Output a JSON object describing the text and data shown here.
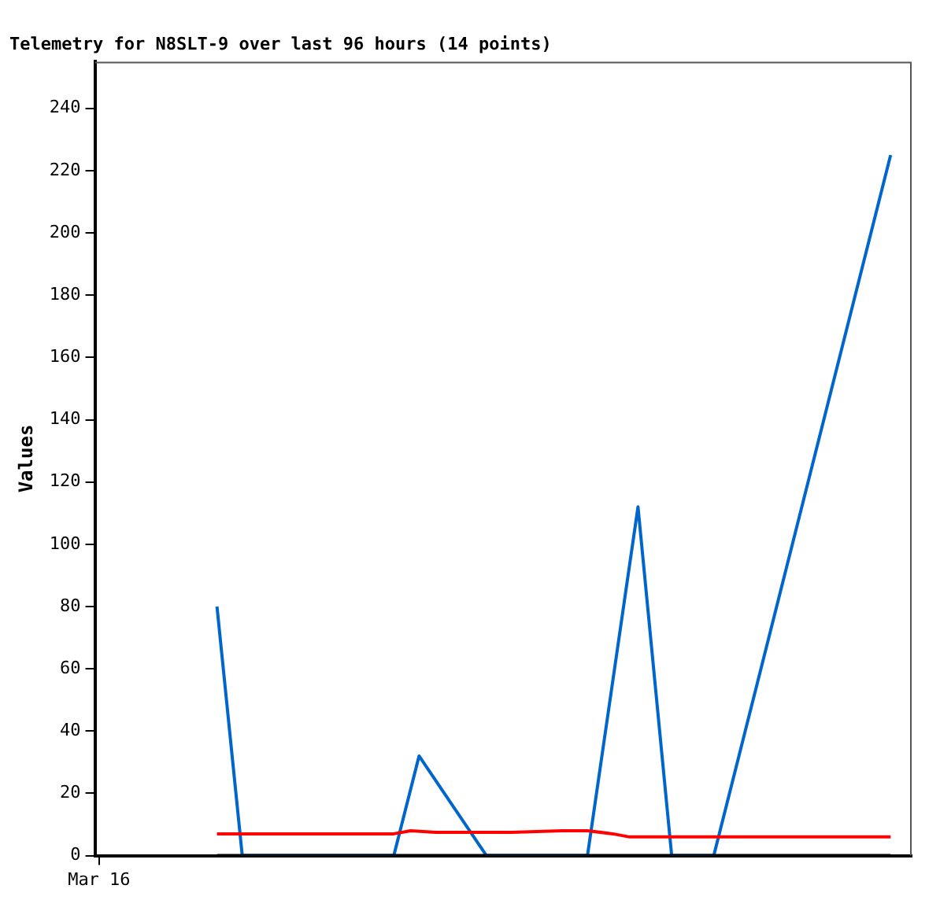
{
  "chart_data": {
    "type": "line",
    "title": "Telemetry for N8SLT-9 over last 96 hours (14 points)",
    "ylabel": "Values",
    "categories": [
      "Mar 16",
      null,
      null,
      null,
      null,
      null,
      null,
      null,
      null,
      null,
      null,
      null,
      null,
      null,
      null,
      null,
      null,
      null,
      null,
      null,
      null,
      null,
      null,
      null,
      null,
      null,
      null,
      null,
      null,
      null,
      null,
      null,
      null,
      null,
      null,
      null,
      null,
      null,
      null,
      null,
      null,
      null,
      null,
      null,
      null,
      null,
      null,
      null,
      null,
      null,
      null,
      null,
      null,
      null,
      null,
      null,
      null,
      null,
      null,
      null,
      null,
      null,
      null,
      null,
      null,
      null,
      null,
      null,
      null,
      null,
      null,
      null,
      null,
      null,
      null,
      null,
      null,
      null,
      null,
      null,
      null,
      null,
      null,
      null,
      null,
      null,
      null,
      null,
      null,
      null,
      null,
      null,
      null,
      null,
      null,
      null,
      null
    ],
    "ylim": [
      0,
      255
    ],
    "yticks": [
      0,
      20,
      40,
      60,
      80,
      100,
      120,
      140,
      160,
      180,
      200,
      220,
      240
    ],
    "grid": false,
    "legend": false,
    "marker": "none",
    "line_style": "solid",
    "series": [
      {
        "color": "#000000",
        "values": [
          null,
          null,
          null,
          null,
          null,
          null,
          null,
          null,
          null,
          null,
          null,
          null,
          null,
          null,
          0,
          null,
          null,
          null,
          null,
          null,
          null,
          null,
          null,
          null,
          null,
          null,
          null,
          null,
          null,
          null,
          null,
          null,
          null,
          null,
          null,
          null,
          null,
          null,
          null,
          null,
          null,
          null,
          null,
          null,
          null,
          null,
          null,
          null,
          null,
          null,
          null,
          null,
          null,
          null,
          null,
          null,
          null,
          null,
          null,
          null,
          null,
          null,
          null,
          null,
          null,
          null,
          null,
          null,
          null,
          null,
          null,
          null,
          null,
          null,
          null,
          null,
          null,
          null,
          null,
          null,
          null,
          null,
          null,
          null,
          null,
          null,
          null,
          null,
          null,
          null,
          null,
          null,
          null,
          null,
          0,
          null,
          null
        ]
      },
      {
        "color": "#ff0000",
        "values": [
          null,
          null,
          null,
          null,
          null,
          null,
          null,
          null,
          null,
          null,
          null,
          null,
          null,
          null,
          7,
          null,
          null,
          null,
          null,
          null,
          null,
          null,
          null,
          null,
          null,
          null,
          null,
          null,
          null,
          null,
          null,
          null,
          null,
          null,
          null,
          7,
          null,
          8,
          null,
          null,
          7.5,
          null,
          null,
          null,
          null,
          null,
          null,
          null,
          null,
          7.5,
          null,
          null,
          null,
          null,
          null,
          8,
          null,
          null,
          8,
          null,
          null,
          7,
          null,
          6,
          null,
          null,
          null,
          null,
          null,
          null,
          null,
          null,
          null,
          null,
          null,
          null,
          null,
          null,
          null,
          null,
          null,
          null,
          null,
          null,
          null,
          null,
          null,
          null,
          null,
          null,
          null,
          null,
          null,
          null,
          6,
          null,
          null
        ]
      },
      {
        "color": "#0066cc",
        "values": [
          null,
          null,
          null,
          null,
          null,
          null,
          null,
          null,
          null,
          null,
          null,
          null,
          null,
          null,
          80,
          null,
          null,
          0,
          null,
          null,
          null,
          null,
          null,
          null,
          null,
          null,
          null,
          null,
          null,
          null,
          null,
          null,
          null,
          null,
          null,
          0,
          null,
          null,
          32,
          null,
          null,
          null,
          null,
          null,
          null,
          null,
          0,
          null,
          null,
          null,
          null,
          null,
          null,
          null,
          null,
          null,
          null,
          null,
          0,
          null,
          null,
          null,
          null,
          null,
          112,
          null,
          null,
          null,
          0,
          null,
          null,
          null,
          null,
          0,
          null,
          null,
          null,
          null,
          null,
          null,
          null,
          null,
          null,
          null,
          null,
          null,
          null,
          null,
          null,
          null,
          null,
          null,
          null,
          null,
          225,
          null,
          null
        ]
      }
    ]
  }
}
